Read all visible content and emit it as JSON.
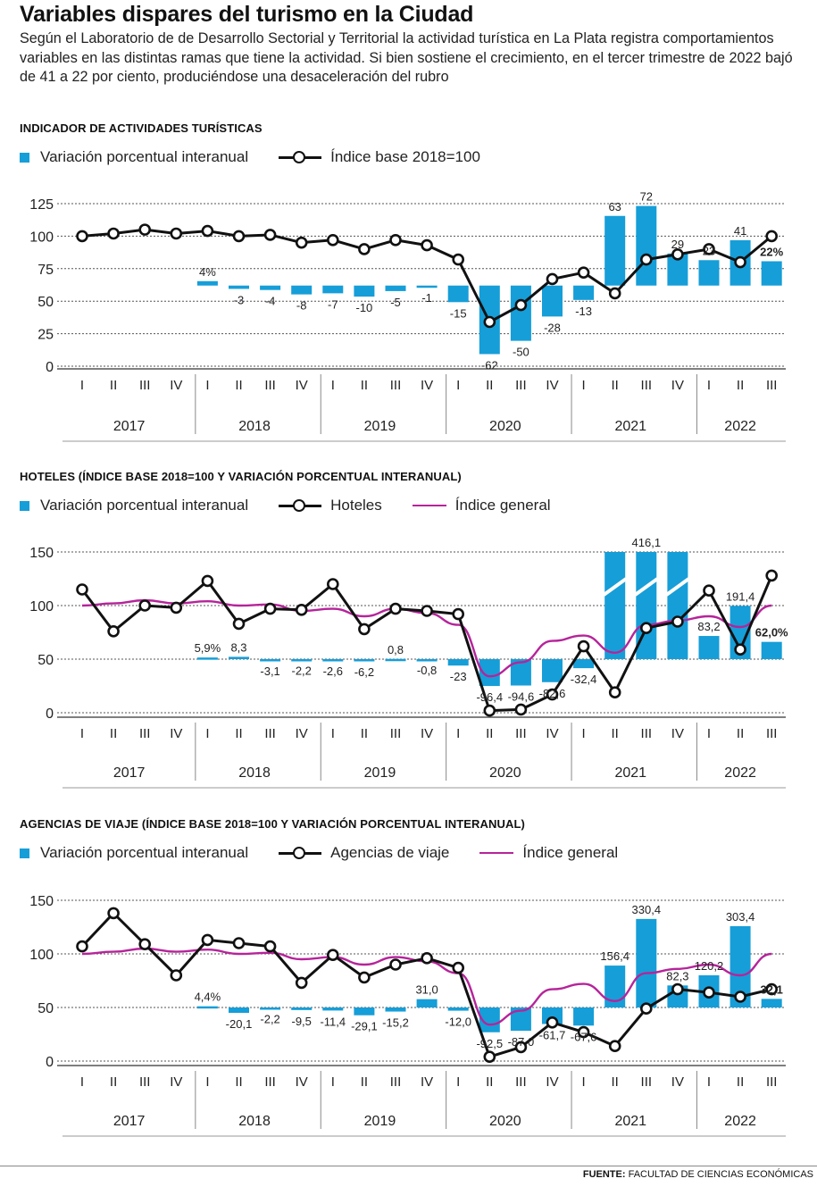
{
  "header": {
    "title": "Variables dispares del turismo en la Ciudad",
    "subtitle": "Según el Laboratorio de de Desarrollo Sectorial y Territorial la actividad turística en La Plata registra comportamientos variables en las distintas ramas que tiene la actividad. Si bien sostiene el crecimiento, en el tercer trimestre de 2022 bajó de 41 a 22 por ciento, produciéndose una desaceleración del rubro"
  },
  "colors": {
    "bar": "#169ed8",
    "line": "#111111",
    "general": "#b6249a",
    "grid": "#555555"
  },
  "footer": {
    "source_label": "FUENTE:",
    "source_text": "FACULTAD DE CIENCIAS ECONÓMICAS"
  },
  "chart_data": [
    {
      "type": "bar+line",
      "title": "INDICADOR DE ACTIVIDADES TURÍSTICAS",
      "legend": {
        "bars": "Variación porcentual interanual",
        "line": "Índice base 2018=100"
      },
      "quarters": [
        "I",
        "II",
        "III",
        "IV",
        "I",
        "II",
        "III",
        "IV",
        "I",
        "II",
        "III",
        "IV",
        "I",
        "II",
        "III",
        "IV",
        "I",
        "II",
        "III",
        "IV",
        "I",
        "II",
        "III"
      ],
      "years": [
        "2017",
        "2018",
        "2019",
        "2020",
        "2021",
        "2022"
      ],
      "y_ticks": [
        0,
        25,
        50,
        75,
        100,
        125
      ],
      "ylim": [
        0,
        125
      ],
      "bar_baseline": 62,
      "bar_scale": 0.85,
      "bar_values": [
        null,
        null,
        null,
        null,
        4,
        -3,
        -4,
        -8,
        -7,
        -10,
        -5,
        -1,
        -15,
        -62,
        -50,
        -28,
        -13,
        63,
        72,
        29,
        23,
        41,
        22
      ],
      "bar_labels": [
        "",
        "",
        "",
        "",
        "4%",
        "-3",
        "-4",
        "-8",
        "-7",
        "-10",
        "-5",
        "-1",
        "-15",
        "-62",
        "-50",
        "-28",
        "-13",
        "63",
        "72",
        "29",
        "23",
        "41",
        "22%"
      ],
      "line_values": [
        100,
        102,
        105,
        102,
        104,
        100,
        101,
        95,
        97,
        90,
        97,
        93,
        82,
        34,
        47,
        67,
        72,
        56,
        82,
        86,
        90,
        80,
        100
      ],
      "general_values": null
    },
    {
      "type": "bar+line",
      "title": "HOTELES (ÍNDICE BASE 2018=100 Y VARIACIÓN PORCENTUAL INTERANUAL)",
      "legend": {
        "bars": "Variación porcentual interanual",
        "line": "Hoteles",
        "general": "Índice general"
      },
      "quarters": [
        "I",
        "II",
        "III",
        "IV",
        "I",
        "II",
        "III",
        "IV",
        "I",
        "II",
        "III",
        "IV",
        "I",
        "II",
        "III",
        "IV",
        "I",
        "II",
        "III",
        "IV",
        "I",
        "II",
        "III"
      ],
      "years": [
        "2017",
        "2018",
        "2019",
        "2020",
        "2021",
        "2022"
      ],
      "y_ticks": [
        0,
        50,
        100,
        150
      ],
      "ylim": [
        0,
        150
      ],
      "bar_baseline": 50,
      "bar_scale": 0.26,
      "bar_values": [
        null,
        null,
        null,
        null,
        5.9,
        8.3,
        -3.1,
        -2.2,
        -2.6,
        -6.2,
        0.8,
        -0.8,
        -23,
        -96.4,
        -94.6,
        -82.6,
        -32.4,
        416.1,
        416.1,
        416.1,
        83.2,
        191.4,
        62.0
      ],
      "bar_labels": [
        "",
        "",
        "",
        "",
        "5,9%",
        "8,3",
        "-3,1",
        "-2,2",
        "-2,6",
        "-6,2",
        "0,8",
        "-0,8",
        "-23",
        "-96,4",
        "-94,6",
        "-82,6",
        "-32,4",
        "",
        "416,1",
        "",
        "83,2",
        "191,4",
        "62,0%"
      ],
      "broken_bars": [
        17,
        18,
        19
      ],
      "line_values": [
        115,
        76,
        100,
        98,
        123,
        83,
        97,
        96,
        120,
        78,
        97,
        95,
        92,
        2,
        3,
        17,
        62,
        19,
        79,
        85,
        114,
        59,
        128
      ],
      "general_values": [
        100,
        102,
        105,
        102,
        104,
        100,
        101,
        95,
        97,
        90,
        97,
        93,
        82,
        34,
        47,
        67,
        72,
        56,
        82,
        86,
        90,
        80,
        100
      ]
    },
    {
      "type": "bar+line",
      "title": "AGENCIAS DE VIAJE (ÍNDICE BASE 2018=100 Y VARIACIÓN PORCENTUAL INTERANUAL)",
      "legend": {
        "bars": "Variación porcentual interanual",
        "line": "Agencias de viaje",
        "general": "Índice general"
      },
      "quarters": [
        "I",
        "II",
        "III",
        "IV",
        "I",
        "II",
        "III",
        "IV",
        "I",
        "II",
        "III",
        "IV",
        "I",
        "II",
        "III",
        "IV",
        "I",
        "II",
        "III",
        "IV",
        "I",
        "II",
        "III"
      ],
      "years": [
        "2017",
        "2018",
        "2019",
        "2020",
        "2021",
        "2022"
      ],
      "y_ticks": [
        0,
        50,
        100,
        150
      ],
      "ylim": [
        0,
        150
      ],
      "bar_baseline": 50,
      "bar_scale": 0.25,
      "bar_values": [
        null,
        null,
        null,
        null,
        4.4,
        -20.1,
        -2.2,
        -9.5,
        -11.4,
        -29.1,
        -15.2,
        31.0,
        -12.0,
        -92.5,
        -87.0,
        -61.7,
        -67.6,
        156.4,
        330.4,
        82.3,
        120.2,
        303.4,
        32.1
      ],
      "bar_labels": [
        "",
        "",
        "",
        "",
        "4,4%",
        "-20,1",
        "-2,2",
        "-9,5",
        "-11,4",
        "-29,1",
        "-15,2",
        "31,0",
        "-12,0",
        "-92,5",
        "-87,0",
        "-61,7",
        "-67,6",
        "156,4",
        "330,4",
        "82,3",
        "120,2",
        "303,4",
        "32,1"
      ],
      "line_values": [
        107,
        138,
        109,
        80,
        113,
        110,
        107,
        73,
        99,
        78,
        90,
        96,
        87,
        4,
        13,
        36,
        27,
        14,
        49,
        67,
        64,
        60,
        67
      ],
      "general_values": [
        100,
        102,
        105,
        102,
        104,
        100,
        101,
        95,
        97,
        90,
        97,
        93,
        82,
        34,
        47,
        67,
        72,
        56,
        82,
        86,
        90,
        80,
        100
      ]
    }
  ]
}
